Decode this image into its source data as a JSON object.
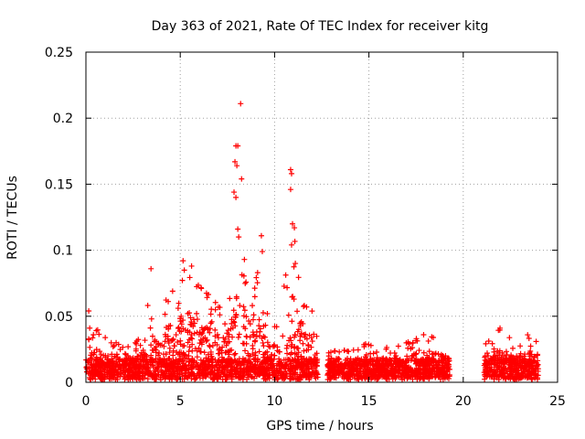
{
  "chart_data": {
    "type": "scatter",
    "title": "Day 363 of 2021, Rate Of TEC Index for receiver kitg",
    "xlabel": "GPS time / hours",
    "ylabel": "ROTI / TECUs",
    "xlim": [
      0,
      25
    ],
    "ylim": [
      0,
      0.25
    ],
    "xticks": [
      0,
      5,
      10,
      15,
      20,
      25
    ],
    "yticks": [
      0,
      0.05,
      0.1,
      0.15,
      0.2,
      0.25
    ],
    "xtick_labels": [
      "0",
      "5",
      "10",
      "15",
      "20",
      "25"
    ],
    "ytick_labels": [
      "0",
      "0.05",
      "0.1",
      "0.15",
      "0.2",
      "0.25"
    ],
    "grid": true,
    "marker": "+",
    "color": "#ff0000",
    "segments": [
      {
        "start": 0.0,
        "end": 12.3,
        "envelope": [
          [
            0.0,
            0.028
          ],
          [
            0.15,
            0.054
          ],
          [
            0.3,
            0.035
          ],
          [
            0.6,
            0.04
          ],
          [
            1.0,
            0.034
          ],
          [
            1.5,
            0.031
          ],
          [
            2.0,
            0.026
          ],
          [
            2.5,
            0.028
          ],
          [
            3.0,
            0.036
          ],
          [
            3.3,
            0.06
          ],
          [
            3.5,
            0.086
          ],
          [
            3.8,
            0.045
          ],
          [
            4.2,
            0.06
          ],
          [
            4.5,
            0.075
          ],
          [
            4.8,
            0.082
          ],
          [
            5.0,
            0.086
          ],
          [
            5.3,
            0.091
          ],
          [
            5.6,
            0.087
          ],
          [
            5.9,
            0.079
          ],
          [
            6.2,
            0.068
          ],
          [
            6.6,
            0.072
          ],
          [
            7.0,
            0.066
          ],
          [
            7.4,
            0.058
          ],
          [
            7.8,
            0.085
          ],
          [
            8.0,
            0.115
          ],
          [
            8.3,
            0.095
          ],
          [
            8.6,
            0.065
          ],
          [
            9.0,
            0.08
          ],
          [
            9.4,
            0.07
          ],
          [
            9.8,
            0.048
          ],
          [
            10.2,
            0.044
          ],
          [
            10.6,
            0.082
          ],
          [
            10.8,
            0.1
          ],
          [
            11.0,
            0.12
          ],
          [
            11.3,
            0.075
          ],
          [
            11.6,
            0.058
          ],
          [
            12.0,
            0.054
          ],
          [
            12.3,
            0.05
          ]
        ]
      },
      {
        "start": 12.8,
        "end": 19.3,
        "envelope": [
          [
            12.8,
            0.022
          ],
          [
            13.5,
            0.025
          ],
          [
            14.0,
            0.023
          ],
          [
            14.8,
            0.029
          ],
          [
            15.5,
            0.027
          ],
          [
            16.2,
            0.026
          ],
          [
            17.0,
            0.03
          ],
          [
            17.5,
            0.033
          ],
          [
            18.2,
            0.035
          ],
          [
            18.8,
            0.032
          ],
          [
            19.3,
            0.028
          ]
        ]
      },
      {
        "start": 21.1,
        "end": 24.0,
        "envelope": [
          [
            21.1,
            0.028
          ],
          [
            21.5,
            0.033
          ],
          [
            21.9,
            0.04
          ],
          [
            22.4,
            0.034
          ],
          [
            22.9,
            0.032
          ],
          [
            23.4,
            0.036
          ],
          [
            24.0,
            0.034
          ]
        ]
      }
    ],
    "outliers": [
      {
        "x": 8.2,
        "y": 0.211
      },
      {
        "x": 7.95,
        "y": 0.179
      },
      {
        "x": 8.05,
        "y": 0.179
      },
      {
        "x": 7.9,
        "y": 0.167
      },
      {
        "x": 8.0,
        "y": 0.164
      },
      {
        "x": 8.25,
        "y": 0.154
      },
      {
        "x": 7.85,
        "y": 0.144
      },
      {
        "x": 7.95,
        "y": 0.14
      },
      {
        "x": 8.05,
        "y": 0.116
      },
      {
        "x": 8.1,
        "y": 0.11
      },
      {
        "x": 9.3,
        "y": 0.111
      },
      {
        "x": 9.35,
        "y": 0.099
      },
      {
        "x": 10.85,
        "y": 0.161
      },
      {
        "x": 10.9,
        "y": 0.158
      },
      {
        "x": 10.85,
        "y": 0.146
      },
      {
        "x": 10.95,
        "y": 0.12
      },
      {
        "x": 11.05,
        "y": 0.117
      },
      {
        "x": 10.9,
        "y": 0.104
      },
      {
        "x": 3.45,
        "y": 0.086
      },
      {
        "x": 5.15,
        "y": 0.092
      },
      {
        "x": 5.6,
        "y": 0.088
      },
      {
        "x": 9.1,
        "y": 0.083
      },
      {
        "x": 8.4,
        "y": 0.093
      },
      {
        "x": 11.1,
        "y": 0.09
      },
      {
        "x": 0.15,
        "y": 0.054
      },
      {
        "x": 17.9,
        "y": 0.036
      },
      {
        "x": 21.95,
        "y": 0.041
      }
    ]
  }
}
